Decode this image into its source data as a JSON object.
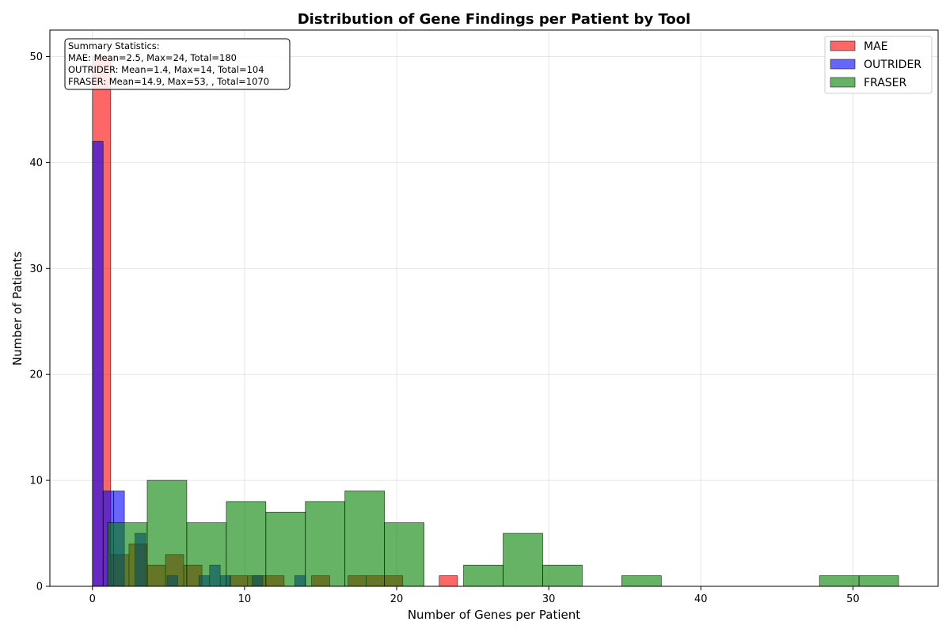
{
  "chart_data": {
    "type": "bar",
    "title": "Distribution of Gene Findings per Patient by Tool",
    "xlabel": "Number of Genes per Patient",
    "ylabel": "Number of Patients",
    "xlim": [
      -2.8,
      55.6
    ],
    "ylim": [
      0,
      52.5
    ],
    "xticks": [
      0,
      10,
      20,
      30,
      40,
      50
    ],
    "yticks": [
      0,
      10,
      20,
      30,
      40,
      50
    ],
    "grid": true,
    "legend_position": "top-right",
    "summary_box": {
      "position": "top-left",
      "lines": [
        "Summary Statistics:",
        "MAE: Mean=2.5, Max=24, Total=180",
        "OUTRIDER: Mean=1.4, Max=14, Total=104",
        "FRASER: Mean=14.9, Max=53, , Total=1070"
      ]
    },
    "series": [
      {
        "name": "MAE",
        "color": "#ff0000",
        "alpha": 0.6,
        "bins": [
          {
            "x0": 0.0,
            "x1": 1.2,
            "count": 50
          },
          {
            "x0": 1.2,
            "x1": 2.4,
            "count": 3
          },
          {
            "x0": 2.4,
            "x1": 3.6,
            "count": 4
          },
          {
            "x0": 3.6,
            "x1": 4.8,
            "count": 2
          },
          {
            "x0": 4.8,
            "x1": 6.0,
            "count": 3
          },
          {
            "x0": 6.0,
            "x1": 7.2,
            "count": 2
          },
          {
            "x0": 9.0,
            "x1": 10.2,
            "count": 1
          },
          {
            "x0": 10.2,
            "x1": 11.4,
            "count": 1
          },
          {
            "x0": 11.4,
            "x1": 12.6,
            "count": 1
          },
          {
            "x0": 14.4,
            "x1": 15.6,
            "count": 1
          },
          {
            "x0": 16.8,
            "x1": 18.0,
            "count": 1
          },
          {
            "x0": 18.0,
            "x1": 19.2,
            "count": 1
          },
          {
            "x0": 19.2,
            "x1": 20.4,
            "count": 1
          },
          {
            "x0": 22.8,
            "x1": 24.0,
            "count": 1
          }
        ]
      },
      {
        "name": "OUTRIDER",
        "color": "#0000ff",
        "alpha": 0.6,
        "bins": [
          {
            "x0": 0.0,
            "x1": 0.7,
            "count": 42
          },
          {
            "x0": 0.7,
            "x1": 1.4,
            "count": 9
          },
          {
            "x0": 1.4,
            "x1": 2.1,
            "count": 9
          },
          {
            "x0": 2.8,
            "x1": 3.5,
            "count": 5
          },
          {
            "x0": 4.9,
            "x1": 5.6,
            "count": 1
          },
          {
            "x0": 7.0,
            "x1": 7.7,
            "count": 1
          },
          {
            "x0": 7.7,
            "x1": 8.4,
            "count": 2
          },
          {
            "x0": 8.4,
            "x1": 9.1,
            "count": 1
          },
          {
            "x0": 10.5,
            "x1": 11.2,
            "count": 1
          },
          {
            "x0": 13.3,
            "x1": 14.0,
            "count": 1
          }
        ]
      },
      {
        "name": "FRASER",
        "color": "#008000",
        "alpha": 0.6,
        "bins": [
          {
            "x0": 1.0,
            "x1": 3.6,
            "count": 6
          },
          {
            "x0": 3.6,
            "x1": 6.2,
            "count": 10
          },
          {
            "x0": 6.2,
            "x1": 8.8,
            "count": 6
          },
          {
            "x0": 8.8,
            "x1": 11.4,
            "count": 8
          },
          {
            "x0": 11.4,
            "x1": 14.0,
            "count": 7
          },
          {
            "x0": 14.0,
            "x1": 16.6,
            "count": 8
          },
          {
            "x0": 16.6,
            "x1": 19.2,
            "count": 9
          },
          {
            "x0": 19.2,
            "x1": 21.8,
            "count": 6
          },
          {
            "x0": 24.4,
            "x1": 27.0,
            "count": 2
          },
          {
            "x0": 27.0,
            "x1": 29.6,
            "count": 5
          },
          {
            "x0": 29.6,
            "x1": 32.2,
            "count": 2
          },
          {
            "x0": 34.8,
            "x1": 37.4,
            "count": 1
          },
          {
            "x0": 47.8,
            "x1": 50.4,
            "count": 1
          },
          {
            "x0": 50.4,
            "x1": 53.0,
            "count": 1
          }
        ]
      }
    ]
  }
}
